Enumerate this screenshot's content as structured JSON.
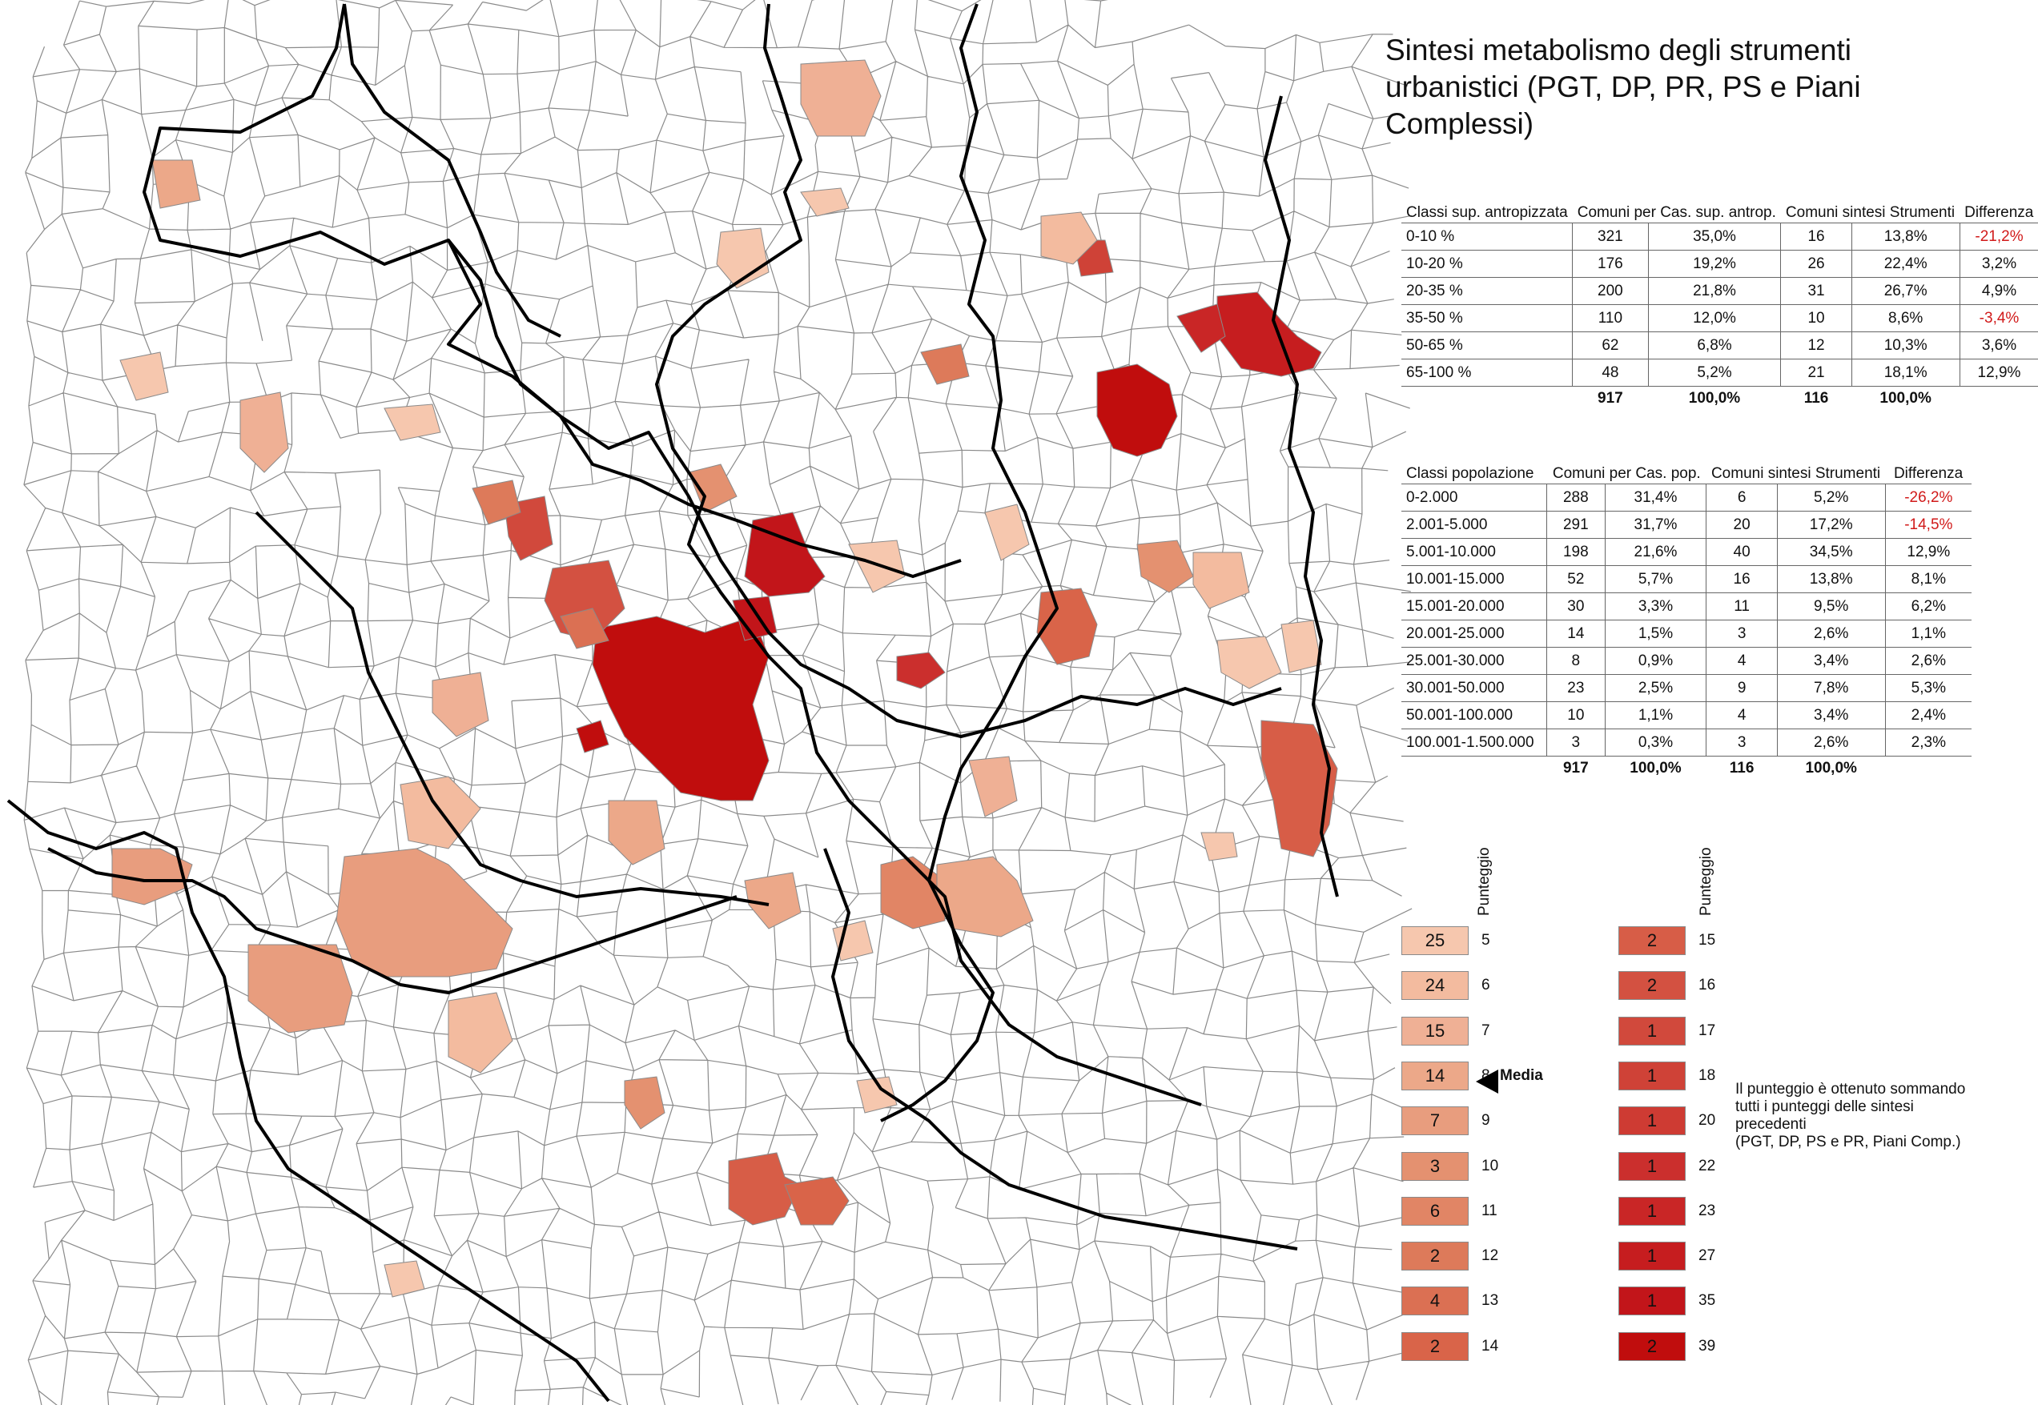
{
  "title": "Sintesi metabolismo degli strumenti urbanistici (PGT, DP, PR, PS e Piani Complessi)",
  "colors": {
    "c5": "#f6c7ae",
    "c6": "#f3bb9f",
    "c7": "#efb095",
    "c8": "#eca889",
    "c9": "#e89d7e",
    "c10": "#e49170",
    "c11": "#e18565",
    "c12": "#dd7a5a",
    "c13": "#db7053",
    "c14": "#d96449",
    "c15": "#d75d47",
    "c16": "#d35141",
    "c17": "#d1493c",
    "c18": "#cf4237",
    "c20": "#ce3b33",
    "c22": "#cb2f2d",
    "c23": "#c92626",
    "c27": "#c61d1f",
    "c35": "#c2151a",
    "c39": "#c00d0d",
    "border": "#000000",
    "municipality_line": "#8a8a8a"
  },
  "table_sup": {
    "headers": [
      "Classi sup. antropizzata",
      "Comuni per Cas. sup. antrop.",
      "Comuni sintesi Strumenti",
      "Differenza"
    ],
    "rows": [
      {
        "cls": "0-10 %",
        "n1": "321",
        "p1": "35,0%",
        "n2": "16",
        "p2": "13,8%",
        "diff": "-21,2%"
      },
      {
        "cls": "10-20 %",
        "n1": "176",
        "p1": "19,2%",
        "n2": "26",
        "p2": "22,4%",
        "diff": "3,2%"
      },
      {
        "cls": "20-35 %",
        "n1": "200",
        "p1": "21,8%",
        "n2": "31",
        "p2": "26,7%",
        "diff": "4,9%"
      },
      {
        "cls": "35-50 %",
        "n1": "110",
        "p1": "12,0%",
        "n2": "10",
        "p2": "8,6%",
        "diff": "-3,4%"
      },
      {
        "cls": "50-65 %",
        "n1": "62",
        "p1": "6,8%",
        "n2": "12",
        "p2": "10,3%",
        "diff": "3,6%"
      },
      {
        "cls": "65-100 %",
        "n1": "48",
        "p1": "5,2%",
        "n2": "21",
        "p2": "18,1%",
        "diff": "12,9%"
      }
    ],
    "total": {
      "n1": "917",
      "p1": "100,0%",
      "n2": "116",
      "p2": "100,0%"
    }
  },
  "table_pop": {
    "headers": [
      "Classi popolazione",
      "Comuni per Cas. pop.",
      "Comuni sintesi Strumenti",
      "Differenza"
    ],
    "rows": [
      {
        "cls": "0-2.000",
        "n1": "288",
        "p1": "31,4%",
        "n2": "6",
        "p2": "5,2%",
        "diff": "-26,2%"
      },
      {
        "cls": "2.001-5.000",
        "n1": "291",
        "p1": "31,7%",
        "n2": "20",
        "p2": "17,2%",
        "diff": "-14,5%"
      },
      {
        "cls": "5.001-10.000",
        "n1": "198",
        "p1": "21,6%",
        "n2": "40",
        "p2": "34,5%",
        "diff": "12,9%"
      },
      {
        "cls": "10.001-15.000",
        "n1": "52",
        "p1": "5,7%",
        "n2": "16",
        "p2": "13,8%",
        "diff": "8,1%"
      },
      {
        "cls": "15.001-20.000",
        "n1": "30",
        "p1": "3,3%",
        "n2": "11",
        "p2": "9,5%",
        "diff": "6,2%"
      },
      {
        "cls": "20.001-25.000",
        "n1": "14",
        "p1": "1,5%",
        "n2": "3",
        "p2": "2,6%",
        "diff": "1,1%"
      },
      {
        "cls": "25.001-30.000",
        "n1": "8",
        "p1": "0,9%",
        "n2": "4",
        "p2": "3,4%",
        "diff": "2,6%"
      },
      {
        "cls": "30.001-50.000",
        "n1": "23",
        "p1": "2,5%",
        "n2": "9",
        "p2": "7,8%",
        "diff": "5,3%"
      },
      {
        "cls": "50.001-100.000",
        "n1": "10",
        "p1": "1,1%",
        "n2": "4",
        "p2": "3,4%",
        "diff": "2,4%"
      },
      {
        "cls": "100.001-1.500.000",
        "n1": "3",
        "p1": "0,3%",
        "n2": "3",
        "p2": "2,6%",
        "diff": "2,3%"
      }
    ],
    "total": {
      "n1": "917",
      "p1": "100,0%",
      "n2": "116",
      "p2": "100,0%"
    }
  },
  "legend": {
    "heading": "Punteggio",
    "left": [
      {
        "count": "25",
        "score": "5",
        "color": "#f6c7ae"
      },
      {
        "count": "24",
        "score": "6",
        "color": "#f3bb9f"
      },
      {
        "count": "15",
        "score": "7",
        "color": "#efb095"
      },
      {
        "count": "14",
        "score": "8",
        "color": "#eca889"
      },
      {
        "count": "7",
        "score": "9",
        "color": "#e89d7e"
      },
      {
        "count": "3",
        "score": "10",
        "color": "#e49170"
      },
      {
        "count": "6",
        "score": "11",
        "color": "#e18565"
      },
      {
        "count": "2",
        "score": "12",
        "color": "#dd7a5a"
      },
      {
        "count": "4",
        "score": "13",
        "color": "#db7053"
      },
      {
        "count": "2",
        "score": "14",
        "color": "#d96449"
      }
    ],
    "right": [
      {
        "count": "2",
        "score": "15",
        "color": "#d75d47"
      },
      {
        "count": "2",
        "score": "16",
        "color": "#d35141"
      },
      {
        "count": "1",
        "score": "17",
        "color": "#d1493c"
      },
      {
        "count": "1",
        "score": "18",
        "color": "#cf4237"
      },
      {
        "count": "1",
        "score": "20",
        "color": "#ce3b33"
      },
      {
        "count": "1",
        "score": "22",
        "color": "#cb2f2d"
      },
      {
        "count": "1",
        "score": "23",
        "color": "#c92626"
      },
      {
        "count": "1",
        "score": "27",
        "color": "#c61d1f"
      },
      {
        "count": "1",
        "score": "35",
        "color": "#c2151a"
      },
      {
        "count": "2",
        "score": "39",
        "color": "#c00d0d"
      }
    ],
    "media_label": "Media"
  },
  "note": [
    "Il punteggio è ottenuto sommando",
    "tutti i punteggi delle sintesi",
    "precedenti",
    "(PGT, DP, PS e PR, Piani Comp.)"
  ]
}
